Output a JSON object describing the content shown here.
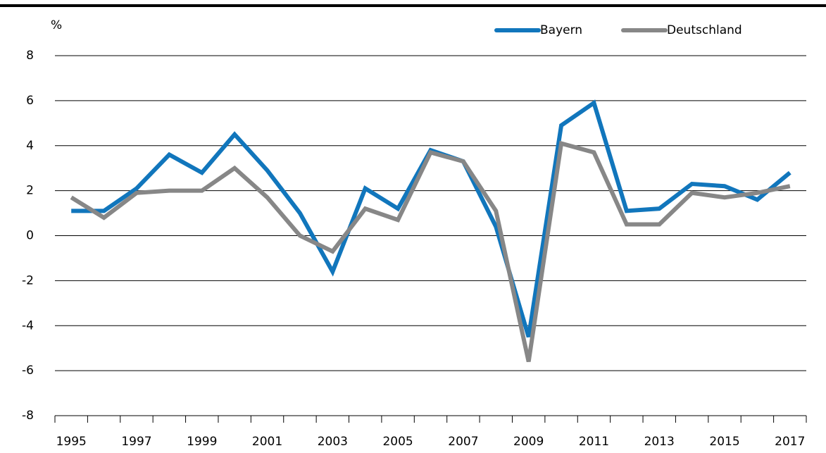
{
  "chart_data": {
    "type": "line",
    "y_label": "%",
    "categories": [
      "1995",
      null,
      "1997",
      null,
      "1999",
      null,
      "2001",
      null,
      "2003",
      null,
      "2005",
      null,
      "2007",
      null,
      "2009",
      null,
      "2011",
      null,
      "2013",
      null,
      "2015",
      null,
      "2017"
    ],
    "series": [
      {
        "name": "Bayern",
        "color": "#1176bc",
        "values": [
          1.1,
          1.1,
          2.1,
          3.6,
          2.8,
          4.5,
          2.9,
          1.0,
          -1.6,
          2.1,
          1.2,
          3.8,
          3.3,
          0.4,
          -4.5,
          4.9,
          5.9,
          1.1,
          1.2,
          2.3,
          2.2,
          1.6,
          2.8
        ]
      },
      {
        "name": "Deutschland",
        "color": "#878787",
        "values": [
          1.7,
          0.8,
          1.9,
          2.0,
          2.0,
          3.0,
          1.7,
          0.0,
          -0.7,
          1.2,
          0.7,
          3.7,
          3.3,
          1.1,
          -5.6,
          4.1,
          3.7,
          0.5,
          0.5,
          1.9,
          1.7,
          1.9,
          2.2
        ]
      }
    ],
    "ylim": [
      -8,
      8
    ],
    "yticks": [
      -8,
      -6,
      -4,
      -2,
      0,
      2,
      4,
      6,
      8
    ],
    "grid": true,
    "legend": "top-right"
  }
}
